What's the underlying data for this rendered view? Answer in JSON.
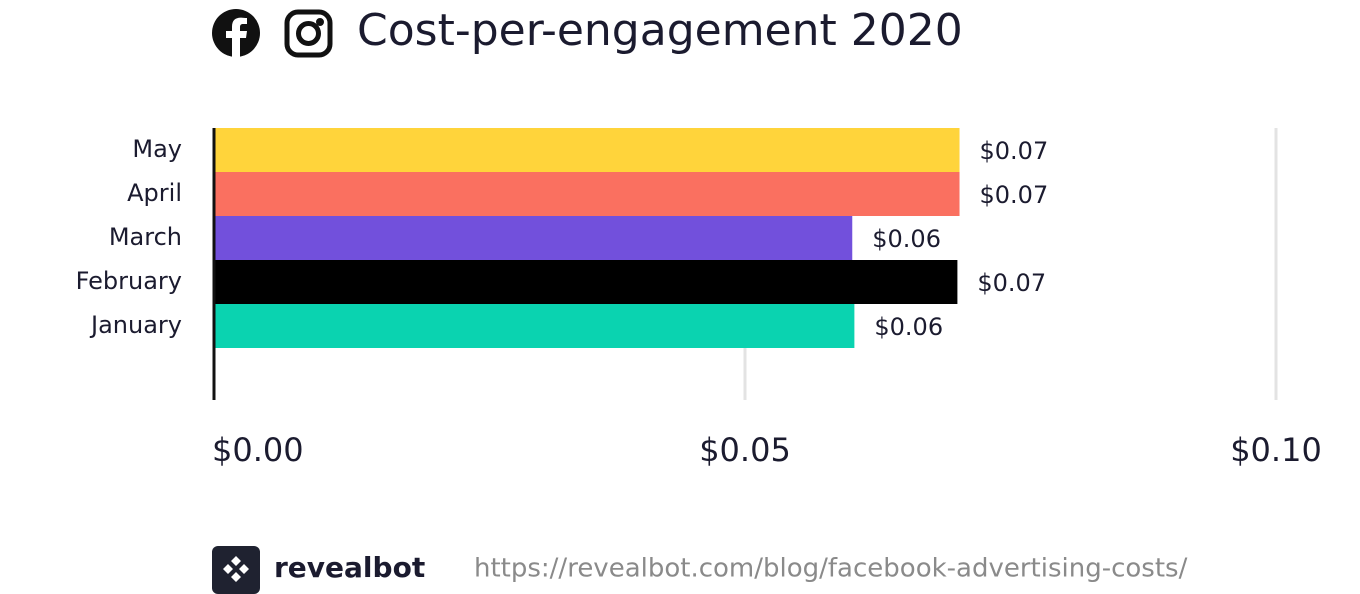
{
  "chart_data": {
    "type": "hbar",
    "title": "Cost-per-engagement 2020",
    "categories": [
      "May",
      "April",
      "March",
      "February",
      "January"
    ],
    "values": [
      0.0702,
      0.0702,
      0.0601,
      0.07,
      0.0603
    ],
    "value_labels": [
      "$0.07",
      "$0.07",
      "$0.06",
      "$0.07",
      "$0.06"
    ],
    "colors": [
      "#ffd43b",
      "#fa7060",
      "#7250dc",
      "#000000",
      "#0ad3b0"
    ],
    "xlim": [
      0,
      0.1
    ],
    "xticks": [
      {
        "value": 0,
        "label": "$0.00"
      },
      {
        "value": 0.05,
        "label": "$0.05"
      },
      {
        "value": 0.1,
        "label": "$0.10"
      }
    ],
    "grid": true
  },
  "footer": {
    "brand": "revealbot",
    "url": "https://revealbot.com/blog/facebook-advertising-costs/"
  }
}
